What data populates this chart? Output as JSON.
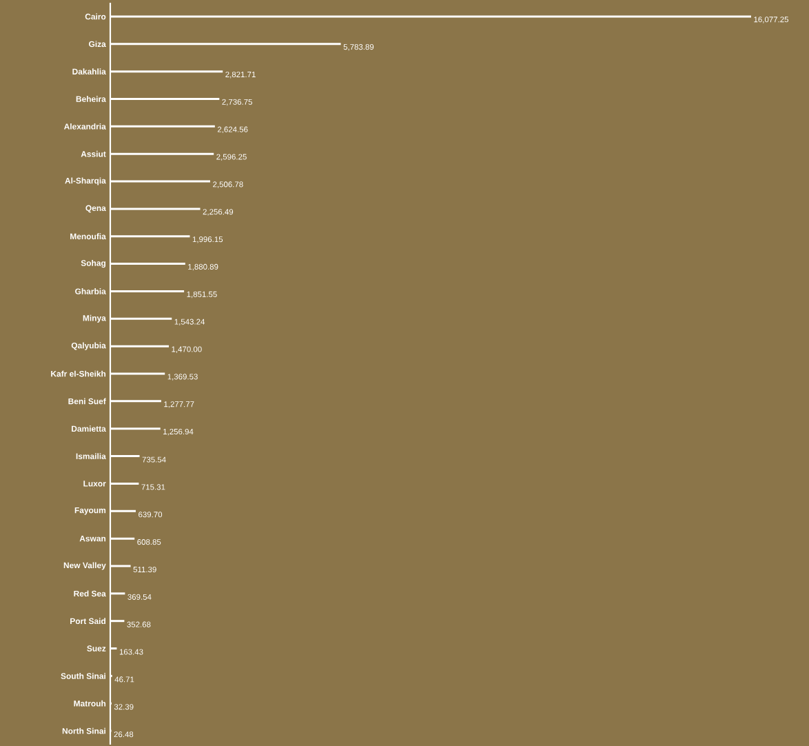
{
  "chart_data": {
    "type": "bar",
    "orientation": "horizontal",
    "color": "#ffffff",
    "categories": [
      "Cairo",
      "Giza",
      "Dakahlia",
      "Beheira",
      "Alexandria",
      "Assiut",
      "Al-Sharqia",
      "Qena",
      "Menoufia",
      "Sohag",
      "Gharbia",
      "Minya",
      "Qalyubia",
      "Kafr el-Sheikh",
      "Beni Suef",
      "Damietta",
      "Ismailia",
      "Luxor",
      "Fayoum",
      "Aswan",
      "New Valley",
      "Red Sea",
      "Port Said",
      "Suez",
      "South Sinai",
      "Matrouh",
      "North Sinai"
    ],
    "values": [
      16077.25,
      5783.89,
      2821.71,
      2736.75,
      2624.56,
      2596.25,
      2506.78,
      2256.49,
      1996.15,
      1880.89,
      1851.55,
      1543.24,
      1470.0,
      1369.53,
      1277.77,
      1256.94,
      735.54,
      715.31,
      639.7,
      608.85,
      511.39,
      369.54,
      352.68,
      163.43,
      46.71,
      32.39,
      26.48
    ],
    "value_labels": [
      "16,077.25",
      "5,783.89",
      "2,821.71",
      "2,736.75",
      "2,624.56",
      "2,596.25",
      "2,506.78",
      "2,256.49",
      "1,996.15",
      "1,880.89",
      "1,851.55",
      "1,543.24",
      "1,470.00",
      "1,369.53",
      "1,277.77",
      "1,256.94",
      "735.54",
      "715.31",
      "639.70",
      "608.85",
      "511.39",
      "369.54",
      "352.68",
      "163.43",
      "46.71",
      "32.39",
      "26.48"
    ]
  }
}
